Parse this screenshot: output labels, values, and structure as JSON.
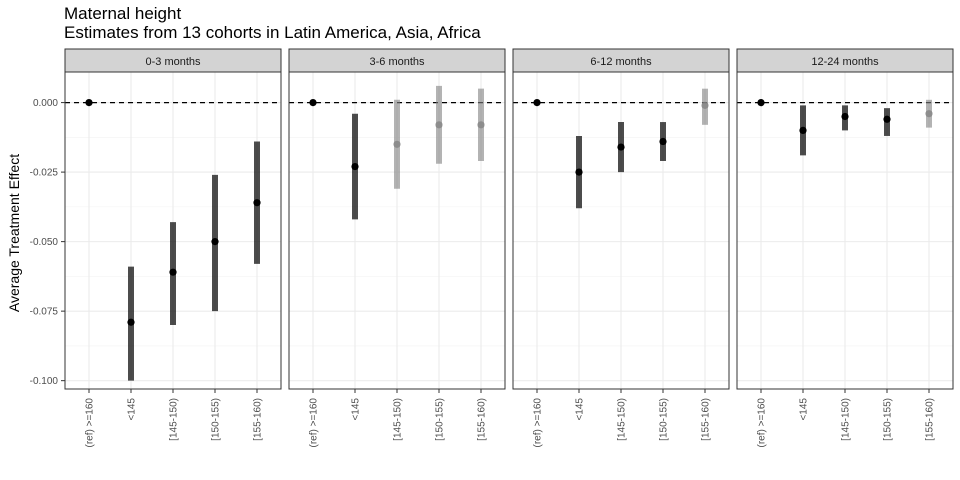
{
  "chart_data": {
    "type": "scatter",
    "title": "Maternal height",
    "subtitle": "Estimates from 13 cohorts in Latin America, Asia, Africa",
    "ylabel": "Average Treatment Effect",
    "xlabel": "",
    "categories": [
      "(ref) >=160",
      "<145",
      "[145-150)",
      "[150-155)",
      "[155-160)"
    ],
    "ylim": [
      -0.103,
      0.011
    ],
    "yticks": [
      0.0,
      -0.025,
      -0.05,
      -0.075,
      -0.1
    ],
    "ytick_labels": [
      "0.000",
      "-0.025",
      "-0.050",
      "-0.075",
      "-0.100"
    ],
    "reference_line": 0,
    "grid": true,
    "colors": {
      "significant": "#000000",
      "nonsignificant": "#808080",
      "panel_strip": "#d3d3d3"
    },
    "panels": [
      {
        "name": "0-3 months",
        "points": [
          {
            "category": "(ref) >=160",
            "est": 0.0,
            "lower": null,
            "upper": null,
            "significant": true
          },
          {
            "category": "<145",
            "est": -0.079,
            "lower": -0.1,
            "upper": -0.059,
            "significant": true
          },
          {
            "category": "[145-150)",
            "est": -0.061,
            "lower": -0.08,
            "upper": -0.043,
            "significant": true
          },
          {
            "category": "[150-155)",
            "est": -0.05,
            "lower": -0.075,
            "upper": -0.026,
            "significant": true
          },
          {
            "category": "[155-160)",
            "est": -0.036,
            "lower": -0.058,
            "upper": -0.014,
            "significant": true
          }
        ]
      },
      {
        "name": "3-6 months",
        "points": [
          {
            "category": "(ref) >=160",
            "est": 0.0,
            "lower": null,
            "upper": null,
            "significant": true
          },
          {
            "category": "<145",
            "est": -0.023,
            "lower": -0.042,
            "upper": -0.004,
            "significant": true
          },
          {
            "category": "[145-150)",
            "est": -0.015,
            "lower": -0.031,
            "upper": 0.001,
            "significant": false
          },
          {
            "category": "[150-155)",
            "est": -0.008,
            "lower": -0.022,
            "upper": 0.006,
            "significant": false
          },
          {
            "category": "[155-160)",
            "est": -0.008,
            "lower": -0.021,
            "upper": 0.005,
            "significant": false
          }
        ]
      },
      {
        "name": "6-12 months",
        "points": [
          {
            "category": "(ref) >=160",
            "est": 0.0,
            "lower": null,
            "upper": null,
            "significant": true
          },
          {
            "category": "<145",
            "est": -0.025,
            "lower": -0.038,
            "upper": -0.012,
            "significant": true
          },
          {
            "category": "[145-150)",
            "est": -0.016,
            "lower": -0.025,
            "upper": -0.007,
            "significant": true
          },
          {
            "category": "[150-155)",
            "est": -0.014,
            "lower": -0.021,
            "upper": -0.007,
            "significant": true
          },
          {
            "category": "[155-160)",
            "est": -0.001,
            "lower": -0.008,
            "upper": 0.005,
            "significant": false
          }
        ]
      },
      {
        "name": "12-24 months",
        "points": [
          {
            "category": "(ref) >=160",
            "est": 0.0,
            "lower": null,
            "upper": null,
            "significant": true
          },
          {
            "category": "<145",
            "est": -0.01,
            "lower": -0.019,
            "upper": -0.001,
            "significant": true
          },
          {
            "category": "[145-150)",
            "est": -0.005,
            "lower": -0.01,
            "upper": -0.001,
            "significant": true
          },
          {
            "category": "[150-155)",
            "est": -0.006,
            "lower": -0.012,
            "upper": -0.002,
            "significant": true
          },
          {
            "category": "[155-160)",
            "est": -0.004,
            "lower": -0.009,
            "upper": 0.001,
            "significant": false
          }
        ]
      }
    ]
  }
}
